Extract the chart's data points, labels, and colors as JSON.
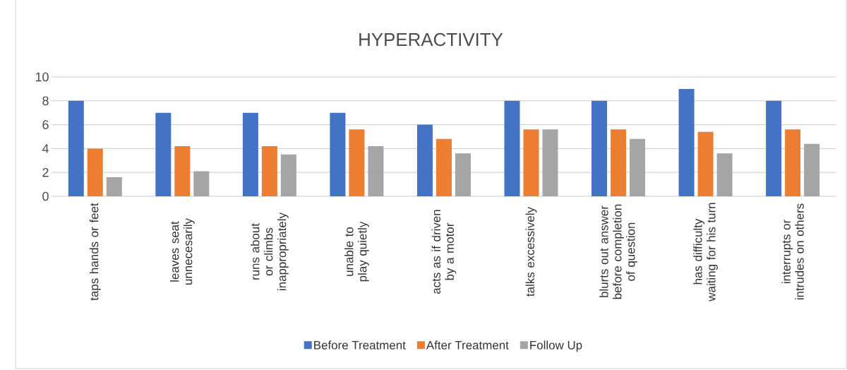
{
  "chart_data": {
    "type": "bar",
    "title": "HYPERACTIVITY",
    "categories": [
      "taps hands or feet",
      "leaves seat unnecesarily",
      "runs about or climbs inappropriately",
      "unable to play quietly",
      "acts as if driven by a motor",
      "talks excessively",
      "blurts out answer before completion of question",
      "has difficulty waiting for his turn",
      "interrupts or intrudes on others"
    ],
    "series": [
      {
        "name": "Before Treatment",
        "color": "#4472c4",
        "values": [
          8,
          7,
          7,
          7,
          6,
          8,
          8,
          9,
          8
        ]
      },
      {
        "name": "After Treatment",
        "color": "#ed7d31",
        "values": [
          4,
          4.2,
          4.2,
          5.6,
          4.8,
          5.6,
          5.6,
          5.4,
          5.6
        ]
      },
      {
        "name": "Follow Up",
        "color": "#a5a5a5",
        "values": [
          1.6,
          2.1,
          3.5,
          4.2,
          3.6,
          5.6,
          4.8,
          3.6,
          4.4
        ]
      }
    ],
    "ylim": [
      0,
      10
    ],
    "yticks": [
      0,
      2,
      4,
      6,
      8,
      10
    ],
    "grid": "y",
    "legend": "bottom"
  }
}
